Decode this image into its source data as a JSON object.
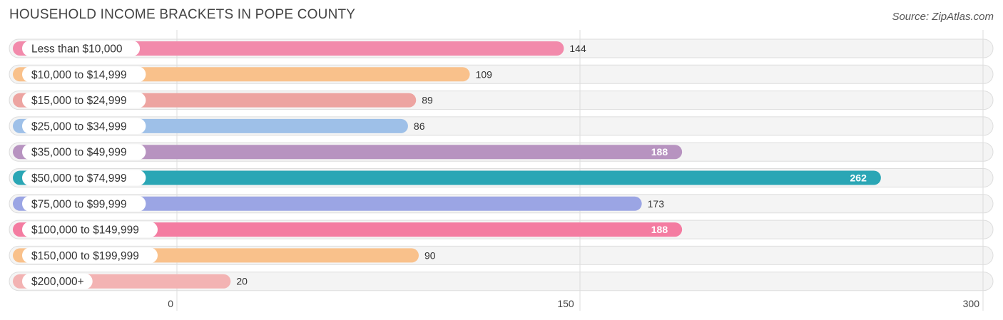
{
  "header": {
    "title": "HOUSEHOLD INCOME BRACKETS IN POPE COUNTY",
    "source": "Source: ZipAtlas.com"
  },
  "chart_data": {
    "type": "bar",
    "orientation": "horizontal",
    "title": "HOUSEHOLD INCOME BRACKETS IN POPE COUNTY",
    "xlabel": "",
    "ylabel": "",
    "xlim": [
      0,
      300
    ],
    "ticks": [
      0,
      150,
      300
    ],
    "grid": true,
    "categories": [
      "Less than $10,000",
      "$10,000 to $14,999",
      "$15,000 to $24,999",
      "$25,000 to $34,999",
      "$35,000 to $49,999",
      "$50,000 to $74,999",
      "$75,000 to $99,999",
      "$100,000 to $149,999",
      "$150,000 to $199,999",
      "$200,000+"
    ],
    "values": [
      144,
      109,
      89,
      86,
      188,
      262,
      173,
      188,
      90,
      20
    ],
    "colors": [
      "#f28aab",
      "#f9c18b",
      "#eda4a1",
      "#9ec0e8",
      "#b793c0",
      "#2aa6b5",
      "#9ba5e4",
      "#f47ca1",
      "#f9c18b",
      "#f3b3b3"
    ],
    "value_label_inside": [
      false,
      false,
      false,
      false,
      true,
      true,
      false,
      true,
      false,
      false
    ]
  }
}
